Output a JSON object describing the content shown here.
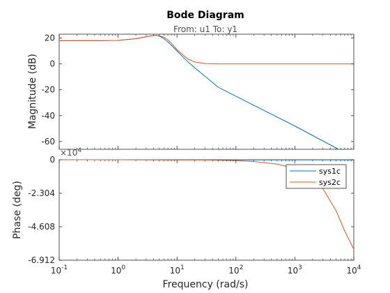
{
  "chart_data": {
    "type": "line",
    "title": "Bode Diagram",
    "subtitle": "From: u1  To: y1",
    "xlabel": "Frequency  (rad/s)",
    "xscale": "log",
    "xlim": [
      0.1,
      10000
    ],
    "x_ticks": [
      {
        "value": 0.1,
        "base": "10",
        "exp": "-1"
      },
      {
        "value": 1,
        "base": "10",
        "exp": "0"
      },
      {
        "value": 10,
        "base": "10",
        "exp": "1"
      },
      {
        "value": 100,
        "base": "10",
        "exp": "2"
      },
      {
        "value": 1000,
        "base": "10",
        "exp": "3"
      },
      {
        "value": 10000,
        "base": "10",
        "exp": "4"
      }
    ],
    "grid": false,
    "legend_position": "top-right",
    "colors": {
      "sys1c": "#0072bd",
      "sys2c": "#d95319"
    },
    "magnitude": {
      "ylabel": "Magnitude (dB)",
      "ylim": [
        -66,
        23
      ],
      "yticks": [
        20,
        0,
        -20,
        -40,
        -60
      ],
      "ytick_labels": [
        "20",
        "0",
        "-20",
        "-40",
        "-60"
      ],
      "series": [
        {
          "name": "sys1c",
          "x": [
            0.1,
            0.5,
            1,
            2,
            3,
            4,
            4.6,
            5,
            6,
            7,
            8,
            10,
            15,
            20,
            50,
            100,
            1000,
            5500
          ],
          "y": [
            18,
            18,
            18.2,
            19.5,
            21,
            22,
            22,
            21.5,
            19.5,
            17,
            14.5,
            10,
            2,
            -3,
            -18,
            -25,
            -48,
            -66
          ]
        },
        {
          "name": "sys2c",
          "x": [
            0.1,
            0.5,
            1,
            2,
            3,
            4,
            4.6,
            5,
            6,
            7,
            8,
            10,
            15,
            20,
            30,
            50,
            100,
            1000,
            10000
          ],
          "y": [
            18,
            18,
            18.2,
            19.5,
            21,
            22,
            22,
            21.8,
            20.5,
            18.5,
            16,
            11,
            4,
            1.5,
            0.3,
            0,
            0,
            0,
            0
          ]
        }
      ]
    },
    "phase": {
      "ylabel": "Phase (deg)",
      "scale_note_base": "×10",
      "scale_note_exp": "4",
      "ylim": [
        -6.912,
        0
      ],
      "yticks": [
        0,
        -2.304,
        -4.608,
        -6.912
      ],
      "ytick_labels": [
        "0",
        "-2.304",
        "-4.608",
        "-6.912"
      ],
      "series": [
        {
          "name": "sys1c",
          "x": [
            0.1,
            1,
            4,
            10,
            30,
            100,
            1000,
            10000
          ],
          "y": [
            0,
            -0.001,
            -0.005,
            -0.01,
            -0.012,
            -0.013,
            -0.013,
            -0.013
          ]
        },
        {
          "name": "sys2c",
          "x": [
            0.1,
            1,
            10,
            30,
            100,
            200,
            500,
            1000,
            2000,
            3000,
            5000,
            7000,
            10000
          ],
          "y": [
            0,
            -0.002,
            -0.01,
            -0.02,
            -0.06,
            -0.12,
            -0.3,
            -0.6,
            -1.2,
            -2.0,
            -3.5,
            -4.9,
            -6.15
          ]
        }
      ]
    }
  }
}
